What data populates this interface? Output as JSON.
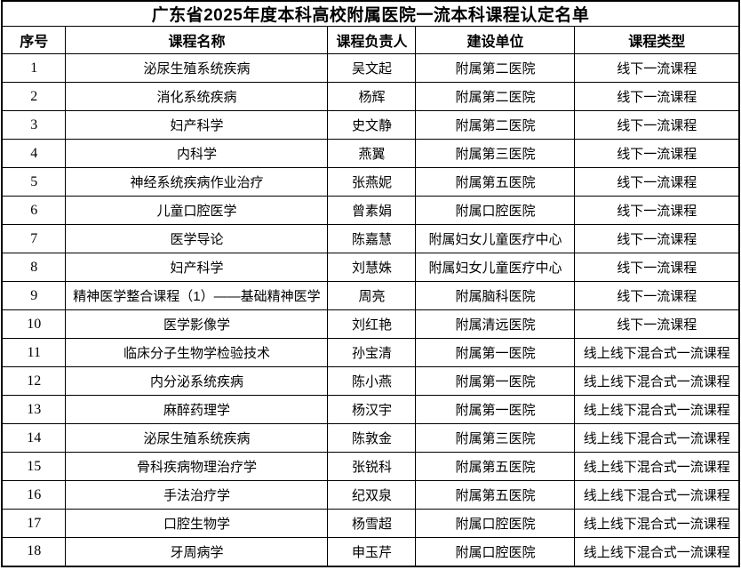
{
  "page": {
    "title": "广东省2025年度本科高校附属医院一流本科课程认定名单"
  },
  "colors": {
    "background": "#ffffff",
    "text": "#000000",
    "border": "#000000"
  },
  "table": {
    "headers": [
      "序号",
      "课程名称",
      "课程负责人",
      "建设单位",
      "课程类型"
    ],
    "rows": [
      [
        "1",
        "泌尿生殖系统疾病",
        "吴文起",
        "附属第二医院",
        "线下一流课程"
      ],
      [
        "2",
        "消化系统疾病",
        "杨辉",
        "附属第二医院",
        "线下一流课程"
      ],
      [
        "3",
        "妇产科学",
        "史文静",
        "附属第二医院",
        "线下一流课程"
      ],
      [
        "4",
        "内科学",
        "燕翼",
        "附属第三医院",
        "线下一流课程"
      ],
      [
        "5",
        "神经系统疾病作业治疗",
        "张燕妮",
        "附属第五医院",
        "线下一流课程"
      ],
      [
        "6",
        "儿童口腔医学",
        "曾素娟",
        "附属口腔医院",
        "线下一流课程"
      ],
      [
        "7",
        "医学导论",
        "陈嘉慧",
        "附属妇女儿童医疗中心",
        "线下一流课程"
      ],
      [
        "8",
        "妇产科学",
        "刘慧姝",
        "附属妇女儿童医疗中心",
        "线下一流课程"
      ],
      [
        "9",
        "精神医学整合课程（1）——基础精神医学",
        "周亮",
        "附属脑科医院",
        "线下一流课程"
      ],
      [
        "10",
        "医学影像学",
        "刘红艳",
        "附属清远医院",
        "线下一流课程"
      ],
      [
        "11",
        "临床分子生物学检验技术",
        "孙宝清",
        "附属第一医院",
        "线上线下混合式一流课程"
      ],
      [
        "12",
        "内分泌系统疾病",
        "陈小燕",
        "附属第一医院",
        "线上线下混合式一流课程"
      ],
      [
        "13",
        "麻醉药理学",
        "杨汉宇",
        "附属第一医院",
        "线上线下混合式一流课程"
      ],
      [
        "14",
        "泌尿生殖系统疾病",
        "陈敦金",
        "附属第三医院",
        "线上线下混合式一流课程"
      ],
      [
        "15",
        "骨科疾病物理治疗学",
        "张锐科",
        "附属第五医院",
        "线上线下混合式一流课程"
      ],
      [
        "16",
        "手法治疗学",
        "纪双泉",
        "附属第五医院",
        "线上线下混合式一流课程"
      ],
      [
        "17",
        "口腔生物学",
        "杨雪超",
        "附属口腔医院",
        "线上线下混合式一流课程"
      ],
      [
        "18",
        "牙周病学",
        "申玉芹",
        "附属口腔医院",
        "线上线下混合式一流课程"
      ]
    ]
  }
}
